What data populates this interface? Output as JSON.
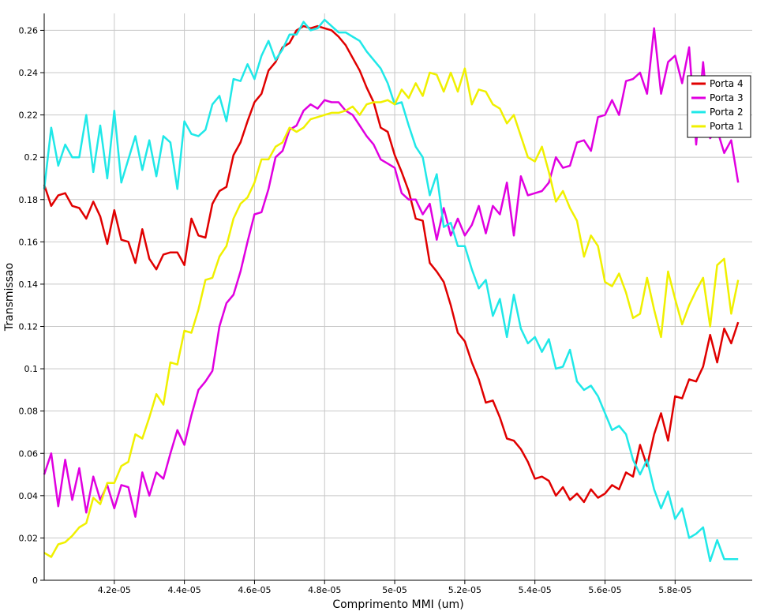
{
  "chart_data": {
    "type": "line",
    "xlabel": "Comprimento MMI (um)",
    "ylabel": "Transmissao",
    "xlim": [
      4e-05,
      6.02e-05
    ],
    "ylim": [
      0,
      0.268
    ],
    "x_ticks": [
      4.2e-05,
      4.4e-05,
      4.6e-05,
      4.8e-05,
      5e-05,
      5.2e-05,
      5.4e-05,
      5.6e-05,
      5.8e-05
    ],
    "x_tick_labels": [
      "4.2e-05",
      "4.4e-05",
      "4.6e-05",
      "4.8e-05",
      "5e-05",
      "5.2e-05",
      "5.4e-05",
      "5.6e-05",
      "5.8e-05"
    ],
    "y_ticks": [
      0,
      0.02,
      0.04,
      0.06,
      0.08,
      0.1,
      0.12,
      0.14,
      0.16,
      0.18,
      0.2,
      0.22,
      0.24,
      0.26
    ],
    "y_tick_labels": [
      "0",
      "0.02",
      "0.04",
      "0.06",
      "0.08",
      "0.1",
      "0.12",
      "0.14",
      "0.16",
      "0.18",
      "0.2",
      "0.22",
      "0.24",
      "0.26"
    ],
    "grid": true,
    "legend_position": "top-right",
    "x_start": 4e-05,
    "x_step": 2e-07,
    "series": [
      {
        "name": "Porta 4",
        "color": "#e00000",
        "values": [
          0.187,
          0.177,
          0.182,
          0.183,
          0.177,
          0.176,
          0.171,
          0.179,
          0.172,
          0.159,
          0.175,
          0.161,
          0.16,
          0.15,
          0.166,
          0.152,
          0.147,
          0.154,
          0.155,
          0.155,
          0.149,
          0.171,
          0.163,
          0.162,
          0.178,
          0.184,
          0.186,
          0.201,
          0.207,
          0.217,
          0.226,
          0.23,
          0.241,
          0.245,
          0.252,
          0.254,
          0.26,
          0.262,
          0.261,
          0.262,
          0.261,
          0.26,
          0.257,
          0.253,
          0.247,
          0.241,
          0.233,
          0.226,
          0.214,
          0.212,
          0.201,
          0.193,
          0.184,
          0.171,
          0.17,
          0.15,
          0.146,
          0.141,
          0.13,
          0.117,
          0.113,
          0.103,
          0.095,
          0.084,
          0.085,
          0.077,
          0.067,
          0.066,
          0.062,
          0.056,
          0.048,
          0.049,
          0.047,
          0.04,
          0.044,
          0.038,
          0.041,
          0.037,
          0.043,
          0.039,
          0.041,
          0.045,
          0.043,
          0.051,
          0.049,
          0.064,
          0.054,
          0.069,
          0.079,
          0.066,
          0.087,
          0.086,
          0.095,
          0.094,
          0.101,
          0.116,
          0.103,
          0.119,
          0.112,
          0.122
        ]
      },
      {
        "name": "Porta 3",
        "color": "#e000e0",
        "values": [
          0.05,
          0.06,
          0.035,
          0.057,
          0.038,
          0.053,
          0.032,
          0.049,
          0.038,
          0.045,
          0.034,
          0.045,
          0.044,
          0.03,
          0.051,
          0.04,
          0.051,
          0.048,
          0.06,
          0.071,
          0.064,
          0.078,
          0.09,
          0.094,
          0.099,
          0.12,
          0.131,
          0.135,
          0.146,
          0.16,
          0.173,
          0.174,
          0.185,
          0.2,
          0.203,
          0.213,
          0.215,
          0.222,
          0.225,
          0.223,
          0.227,
          0.226,
          0.226,
          0.222,
          0.22,
          0.215,
          0.21,
          0.206,
          0.199,
          0.197,
          0.195,
          0.183,
          0.18,
          0.18,
          0.173,
          0.178,
          0.161,
          0.176,
          0.163,
          0.171,
          0.163,
          0.168,
          0.177,
          0.164,
          0.177,
          0.173,
          0.188,
          0.163,
          0.191,
          0.182,
          0.183,
          0.184,
          0.188,
          0.2,
          0.195,
          0.196,
          0.207,
          0.208,
          0.203,
          0.219,
          0.22,
          0.227,
          0.22,
          0.236,
          0.237,
          0.24,
          0.23,
          0.261,
          0.23,
          0.245,
          0.248,
          0.235,
          0.252,
          0.206,
          0.245,
          0.209,
          0.213,
          0.202,
          0.208,
          0.188
        ]
      },
      {
        "name": "Porta 2",
        "color": "#20e8e8",
        "values": [
          0.185,
          0.214,
          0.196,
          0.206,
          0.2,
          0.2,
          0.22,
          0.193,
          0.215,
          0.19,
          0.222,
          0.188,
          0.199,
          0.21,
          0.194,
          0.208,
          0.191,
          0.21,
          0.207,
          0.185,
          0.217,
          0.211,
          0.21,
          0.213,
          0.225,
          0.229,
          0.217,
          0.237,
          0.236,
          0.244,
          0.237,
          0.248,
          0.255,
          0.246,
          0.251,
          0.258,
          0.258,
          0.264,
          0.26,
          0.261,
          0.265,
          0.262,
          0.259,
          0.259,
          0.257,
          0.255,
          0.25,
          0.246,
          0.242,
          0.235,
          0.225,
          0.226,
          0.215,
          0.205,
          0.2,
          0.182,
          0.192,
          0.167,
          0.169,
          0.158,
          0.158,
          0.147,
          0.138,
          0.142,
          0.125,
          0.133,
          0.115,
          0.135,
          0.119,
          0.112,
          0.115,
          0.108,
          0.114,
          0.1,
          0.101,
          0.109,
          0.094,
          0.09,
          0.092,
          0.087,
          0.079,
          0.071,
          0.073,
          0.069,
          0.057,
          0.05,
          0.057,
          0.043,
          0.034,
          0.042,
          0.029,
          0.034,
          0.02,
          0.022,
          0.025,
          0.009,
          0.019,
          0.01,
          0.01,
          0.01
        ]
      },
      {
        "name": "Porta 1",
        "color": "#f0f000",
        "values": [
          0.013,
          0.011,
          0.017,
          0.018,
          0.021,
          0.025,
          0.027,
          0.039,
          0.036,
          0.046,
          0.046,
          0.054,
          0.056,
          0.069,
          0.067,
          0.077,
          0.088,
          0.083,
          0.103,
          0.102,
          0.118,
          0.117,
          0.128,
          0.142,
          0.143,
          0.153,
          0.158,
          0.171,
          0.178,
          0.181,
          0.188,
          0.199,
          0.199,
          0.205,
          0.207,
          0.214,
          0.212,
          0.214,
          0.218,
          0.219,
          0.22,
          0.221,
          0.221,
          0.222,
          0.224,
          0.22,
          0.225,
          0.226,
          0.226,
          0.227,
          0.225,
          0.232,
          0.228,
          0.235,
          0.229,
          0.24,
          0.239,
          0.231,
          0.24,
          0.231,
          0.242,
          0.225,
          0.232,
          0.231,
          0.225,
          0.223,
          0.216,
          0.22,
          0.21,
          0.2,
          0.198,
          0.205,
          0.193,
          0.179,
          0.184,
          0.176,
          0.17,
          0.153,
          0.163,
          0.158,
          0.141,
          0.139,
          0.145,
          0.136,
          0.124,
          0.126,
          0.143,
          0.128,
          0.115,
          0.146,
          0.133,
          0.121,
          0.13,
          0.137,
          0.143,
          0.12,
          0.149,
          0.152,
          0.126,
          0.142
        ]
      }
    ]
  }
}
